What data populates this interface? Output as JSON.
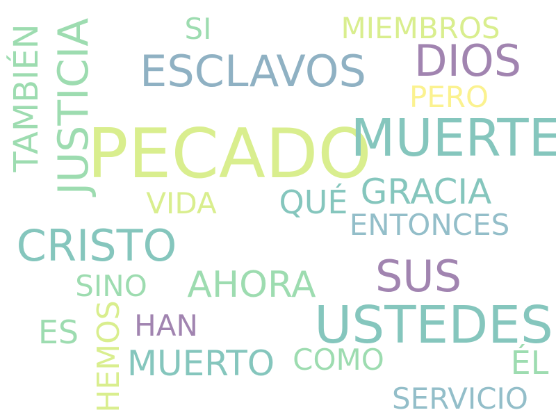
{
  "colors": {
    "lime": "#d9ee8e",
    "teal": "#85c6bd",
    "slate": "#8fb1c3",
    "purple": "#a184b0",
    "mint": "#9ddcb0",
    "yellow": "#fbf28f",
    "steel": "#93bec9"
  },
  "words": {
    "pecado": "PECADO",
    "muerte": "MUERTE",
    "ustedes": "USTEDES",
    "esclavos": "ESCLAVOS",
    "cristo": "CRISTO",
    "dios": "DIOS",
    "justicia": "JUSTICIA",
    "sus": "SUS",
    "gracia": "GRACIA",
    "ahora": "AHORA",
    "tambien": "TAMBIÉN",
    "muerto": "MUERTO",
    "miembros": "MIEMBROS",
    "entonces": "ENTONCES",
    "hemos": "HEMOS",
    "que": "QUÉ",
    "servicio": "SERVICIO",
    "es": "ES",
    "el": "ÉL",
    "pero": "PERO",
    "vida": "VIDA",
    "han": "HAN",
    "sino": "SINO",
    "como": "COMO",
    "si": "SI"
  }
}
